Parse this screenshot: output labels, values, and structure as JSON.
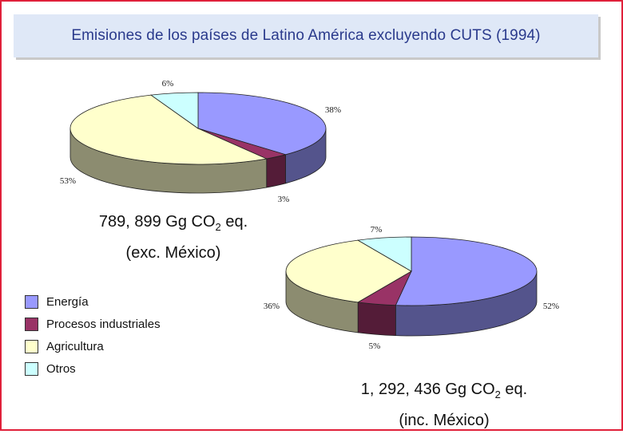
{
  "title": "Emisiones de los países de Latino América excluyendo CUTS (1994)",
  "colors": {
    "energia": "#9999ff",
    "procesos": "#993366",
    "agricultura": "#ffffcc",
    "otros": "#ccffff"
  },
  "legend": [
    {
      "label": "Energía",
      "color": "#9999ff"
    },
    {
      "label": "Procesos industriales",
      "color": "#993366"
    },
    {
      "label": "Agricultura",
      "color": "#ffffcc"
    },
    {
      "label": "Otros",
      "color": "#ccffff"
    }
  ],
  "chart_data": [
    {
      "type": "pie",
      "title": "",
      "caption_line1": "789, 899 Gg CO",
      "caption_sub": "2",
      "caption_unit": " eq.",
      "caption_line2": "(exc. México)",
      "categories": [
        "Energía",
        "Procesos industriales",
        "Agricultura",
        "Otros"
      ],
      "values": [
        38,
        3,
        53,
        6
      ],
      "labels": [
        "38%",
        "3%",
        "53%",
        "6%"
      ]
    },
    {
      "type": "pie",
      "title": "",
      "caption_line1": "1, 292, 436 Gg CO",
      "caption_sub": "2",
      "caption_unit": " eq.",
      "caption_line2": "(inc. México)",
      "categories": [
        "Energía",
        "Procesos industriales",
        "Agricultura",
        "Otros"
      ],
      "values": [
        52,
        5,
        36,
        7
      ],
      "labels": [
        "52%",
        "5%",
        "36%",
        "7%"
      ]
    }
  ]
}
